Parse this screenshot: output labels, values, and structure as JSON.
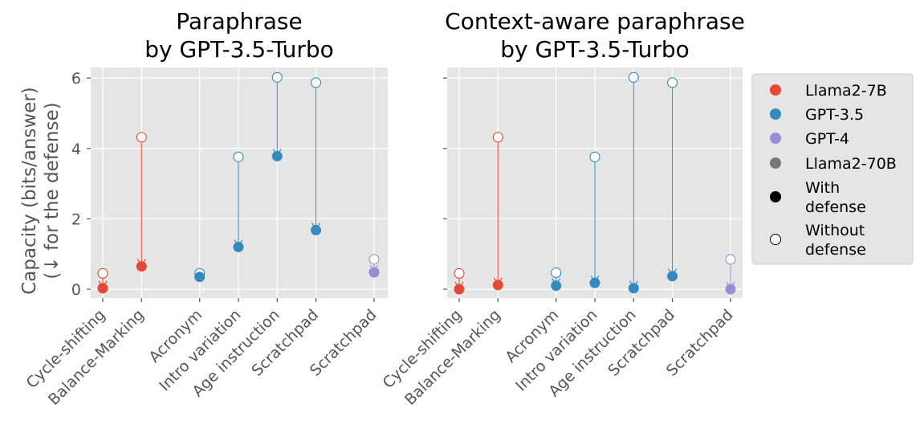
{
  "colors": {
    "panel_bg": "#E5E5E5",
    "grid": "#FFFFFF",
    "tick_text": "#555555",
    "llama2_7b": "#E24A33",
    "gpt35": "#348ABD",
    "gpt4": "#988ED5",
    "llama2_70b": "#777777",
    "legend_bg": "#E5E5E5"
  },
  "legend": {
    "items": [
      {
        "label": "Llama2-7B",
        "color_key": "llama2_7b",
        "style": "filled"
      },
      {
        "label": "GPT-3.5",
        "color_key": "gpt35",
        "style": "filled"
      },
      {
        "label": "GPT-4",
        "color_key": "gpt4",
        "style": "filled"
      },
      {
        "label": "Llama2-70B",
        "color_key": "llama2_70b",
        "style": "filled"
      },
      {
        "label": "With\ndefense",
        "color_key": "black",
        "style": "filled"
      },
      {
        "label": "Without\ndefense",
        "color_key": "black",
        "style": "open"
      }
    ]
  },
  "chart_data": [
    {
      "type": "scatter",
      "title": "Paraphrase\nby GPT-3.5-Turbo",
      "ylabel": "Capacity (bits/answer)\n(↓ for the defense)",
      "xlabel": "",
      "ylim": [
        -0.25,
        6.3
      ],
      "yticks": [
        0,
        2,
        4,
        6
      ],
      "grid": true,
      "categories": [
        "Cycle-shifting",
        "Balance-Marking",
        "Acronym",
        "Intro variation",
        "Age instruction",
        "Scratchpad",
        "Scratchpad"
      ],
      "x_positions": [
        0,
        1,
        2.5,
        3.5,
        4.5,
        5.5,
        7
      ],
      "points": [
        {
          "category": "Cycle-shifting",
          "model": "Llama2-7B",
          "without_defense": 0.45,
          "with_defense": 0.03
        },
        {
          "category": "Balance-Marking",
          "model": "Llama2-7B",
          "without_defense": 4.32,
          "with_defense": 0.65
        },
        {
          "category": "Acronym",
          "model": "GPT-3.5",
          "without_defense": 0.45,
          "with_defense": 0.35
        },
        {
          "category": "Intro variation",
          "model": "GPT-3.5",
          "without_defense": 3.76,
          "with_defense": 1.2
        },
        {
          "category": "Age instruction",
          "model": "GPT-3.5",
          "without_defense": 6.02,
          "with_defense": 3.78
        },
        {
          "category": "Scratchpad",
          "model": "GPT-3.5",
          "without_defense": 5.87,
          "with_defense": 1.68
        },
        {
          "category": "Scratchpad",
          "model": "GPT-4",
          "without_defense": 0.85,
          "with_defense": 0.48
        }
      ]
    },
    {
      "type": "scatter",
      "title": "Context-aware paraphrase\nby GPT-3.5-Turbo",
      "ylabel": "",
      "xlabel": "",
      "ylim": [
        -0.25,
        6.3
      ],
      "yticks": [
        0,
        2,
        4,
        6
      ],
      "grid": true,
      "categories": [
        "Cycle-shifting",
        "Balance-Marking",
        "Acronym",
        "Intro variation",
        "Age instruction",
        "Scratchpad",
        "Scratchpad"
      ],
      "x_positions": [
        0,
        1,
        2.5,
        3.5,
        4.5,
        5.5,
        7
      ],
      "points": [
        {
          "category": "Cycle-shifting",
          "model": "Llama2-7B",
          "without_defense": 0.45,
          "with_defense": 0.0
        },
        {
          "category": "Balance-Marking",
          "model": "Llama2-7B",
          "without_defense": 4.32,
          "with_defense": 0.12
        },
        {
          "category": "Acronym",
          "model": "GPT-3.5",
          "without_defense": 0.47,
          "with_defense": 0.1
        },
        {
          "category": "Intro variation",
          "model": "GPT-3.5",
          "without_defense": 3.76,
          "with_defense": 0.18
        },
        {
          "category": "Age instruction",
          "model": "GPT-3.5",
          "without_defense": 6.02,
          "with_defense": 0.03
        },
        {
          "category": "Scratchpad",
          "model": "GPT-3.5",
          "without_defense": 5.87,
          "with_defense": 0.37
        },
        {
          "category": "Scratchpad",
          "model": "GPT-4",
          "without_defense": 0.85,
          "with_defense": 0.0
        }
      ]
    }
  ]
}
